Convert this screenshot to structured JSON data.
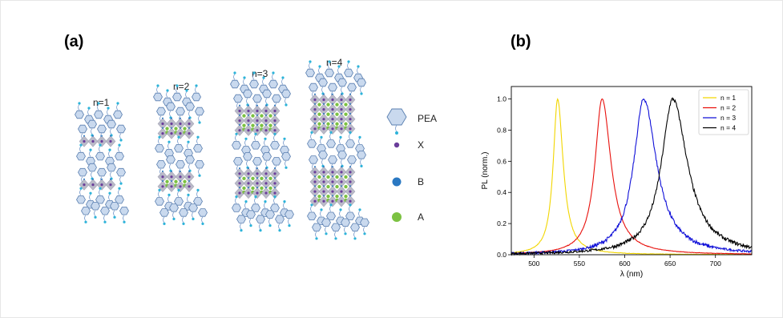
{
  "panel_a": {
    "label": "(a)",
    "structures": [
      {
        "label": "n=1",
        "n": 1
      },
      {
        "label": "n=2",
        "n": 2
      },
      {
        "label": "n=3",
        "n": 3
      },
      {
        "label": "n=4",
        "n": 4
      }
    ],
    "legend": [
      {
        "label": "PEA",
        "icon": "hexagon-icon",
        "color": "#b9cde6"
      },
      {
        "label": "X",
        "icon": "purple-sphere-icon",
        "color": "#6a3d9a"
      },
      {
        "label": "B",
        "icon": "blue-sphere-icon",
        "color": "#2a78c2"
      },
      {
        "label": "A",
        "icon": "green-sphere-icon",
        "color": "#7cc242"
      }
    ]
  },
  "panel_b": {
    "label": "(b)"
  },
  "chart_data": {
    "type": "line",
    "title": "",
    "xlabel": "λ (nm)",
    "ylabel": "PL (norm.)",
    "xlim": [
      475,
      740
    ],
    "ylim": [
      0,
      1.08
    ],
    "xticks": [
      500,
      550,
      600,
      650,
      700
    ],
    "yticks": [
      0.0,
      0.2,
      0.4,
      0.6,
      0.8,
      1.0
    ],
    "grid": false,
    "legend_position": "top-right",
    "series": [
      {
        "name": "n = 1",
        "color": "#f2d600",
        "peak_nm": 526,
        "fwhm_nm": 13
      },
      {
        "name": "n = 2",
        "color": "#e8100c",
        "peak_nm": 575,
        "fwhm_nm": 21
      },
      {
        "name": "n = 3",
        "color": "#1010d8",
        "peak_nm": 621,
        "fwhm_nm": 30
      },
      {
        "name": "n = 4",
        "color": "#000000",
        "peak_nm": 653,
        "fwhm_nm": 34
      }
    ]
  }
}
